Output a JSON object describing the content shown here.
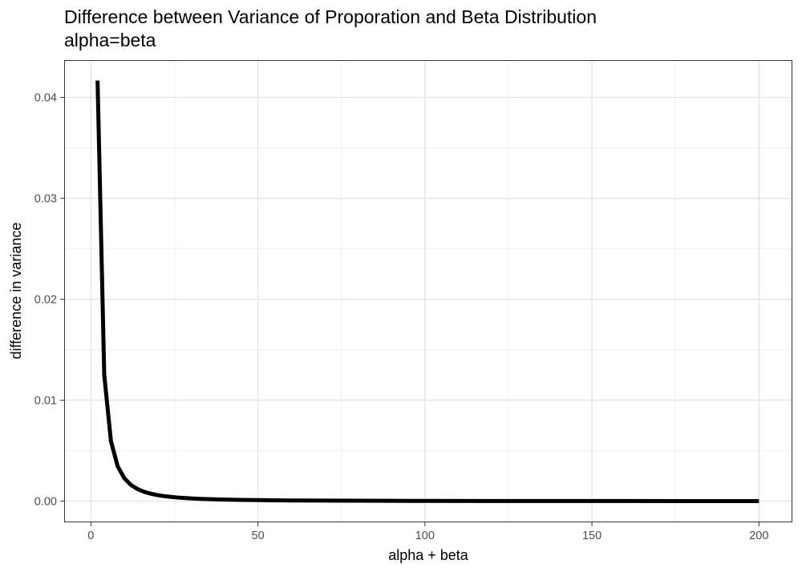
{
  "chart_data": {
    "type": "line",
    "title": "Difference between Variance of Proporation and Beta Distribution",
    "subtitle": "alpha=beta",
    "xlabel": "alpha + beta",
    "ylabel": "difference in variance",
    "xlim": [
      -8,
      210
    ],
    "ylim": [
      -0.0021,
      0.0437
    ],
    "x_ticks": [
      0,
      50,
      100,
      150,
      200
    ],
    "x_tick_labels": [
      "0",
      "50",
      "100",
      "150",
      "200"
    ],
    "y_ticks": [
      0,
      0.01,
      0.02,
      0.03,
      0.04
    ],
    "y_tick_labels": [
      "0.00",
      "0.01",
      "0.02",
      "0.03",
      "0.04"
    ],
    "x_minor_gridlines": [
      25,
      75,
      125,
      175
    ],
    "y_minor_gridlines": [
      0.005,
      0.015,
      0.025,
      0.035
    ],
    "grid": true,
    "series": [
      {
        "color": "#000000",
        "x": [
          2,
          4,
          6,
          8,
          10,
          12,
          14,
          16,
          18,
          20,
          22,
          24,
          26,
          28,
          30,
          32,
          34,
          36,
          38,
          40,
          45,
          50,
          55,
          60,
          70,
          80,
          90,
          100,
          120,
          140,
          160,
          180,
          200
        ],
        "y": [
          0.041667,
          0.0125,
          0.005952,
          0.003472,
          0.002273,
          0.001603,
          0.00119,
          0.000919,
          0.000731,
          0.000595,
          0.000494,
          0.000417,
          0.000356,
          0.000308,
          0.000269,
          0.000237,
          0.00021,
          0.000188,
          0.000169,
          0.000152,
          0.000121,
          9.8e-05,
          8.1e-05,
          6.8e-05,
          5e-05,
          3.8e-05,
          3e-05,
          2.5e-05,
          1.7e-05,
          1.3e-05,
          1e-05,
          8e-06,
          6e-06
        ]
      }
    ]
  }
}
